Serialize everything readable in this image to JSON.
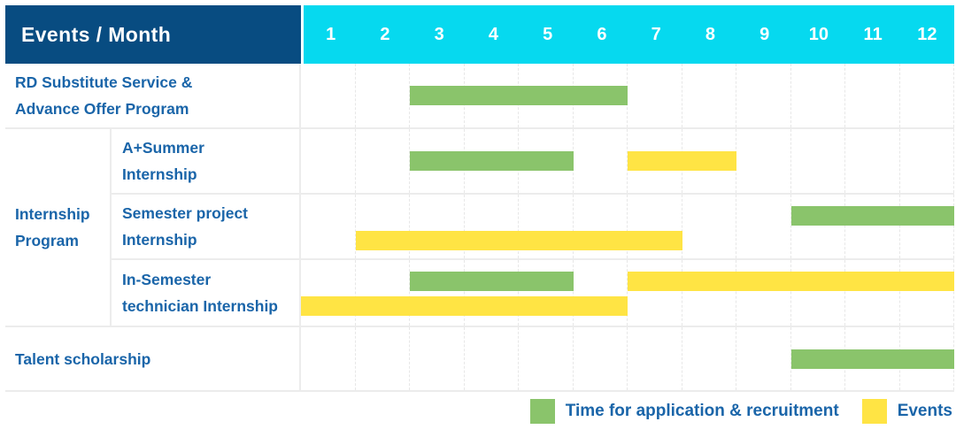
{
  "header": {
    "title": "Events / Month",
    "months": [
      "1",
      "2",
      "3",
      "4",
      "5",
      "6",
      "7",
      "8",
      "9",
      "10",
      "11",
      "12"
    ]
  },
  "group": {
    "label": "Internship Program",
    "label_lines": [
      "Internship",
      "Program"
    ]
  },
  "colors": {
    "header_bg": "#084c81",
    "months_bg": "#06d9ef",
    "header_text": "#ffffff",
    "label_text": "#1a65a9",
    "bar_green": "#8ac46b",
    "bar_yellow": "#ffe444",
    "grid": "#ececec"
  },
  "legend": {
    "items": [
      {
        "label": "Time for application & recruitment",
        "color_key": "bar_green"
      },
      {
        "label": "Events",
        "color_key": "bar_yellow"
      }
    ]
  },
  "chart_data": {
    "type": "bar",
    "subtype": "gantt",
    "title": "Events / Month",
    "xlabel": "Month",
    "x_ticks": [
      1,
      2,
      3,
      4,
      5,
      6,
      7,
      8,
      9,
      10,
      11,
      12
    ],
    "xlim": [
      1,
      12
    ],
    "grid": true,
    "legend_position": "bottom-right",
    "series_legend": [
      "Time for application & recruitment",
      "Events"
    ],
    "rows": [
      {
        "label": "RD Substitute Service & Advance Offer Program",
        "label_lines": [
          "RD Substitute Service &",
          "Advance Offer Program"
        ],
        "group": null,
        "bars": [
          {
            "series": "Time for application & recruitment",
            "color_key": "bar_green",
            "start_month": 3,
            "end_month": 6,
            "lane": "center"
          }
        ]
      },
      {
        "label": "A+Summer Internship",
        "label_lines": [
          "A+Summer",
          "Internship"
        ],
        "group": "Internship Program",
        "bars": [
          {
            "series": "Time for application & recruitment",
            "color_key": "bar_green",
            "start_month": 3,
            "end_month": 5,
            "lane": "center"
          },
          {
            "series": "Events",
            "color_key": "bar_yellow",
            "start_month": 7,
            "end_month": 8,
            "lane": "center"
          }
        ]
      },
      {
        "label": "Semester project Internship",
        "label_lines": [
          "Semester project",
          "Internship"
        ],
        "group": "Internship Program",
        "bars": [
          {
            "series": "Time for application & recruitment",
            "color_key": "bar_green",
            "start_month": 10,
            "end_month": 12,
            "lane": "top"
          },
          {
            "series": "Events",
            "color_key": "bar_yellow",
            "start_month": 2,
            "end_month": 7,
            "lane": "bottom"
          }
        ]
      },
      {
        "label": "In-Semester technician Internship",
        "label_lines": [
          "In-Semester",
          "technician Internship"
        ],
        "group": "Internship Program",
        "bars": [
          {
            "series": "Time for application & recruitment",
            "color_key": "bar_green",
            "start_month": 3,
            "end_month": 5,
            "lane": "top"
          },
          {
            "series": "Events",
            "color_key": "bar_yellow",
            "start_month": 7,
            "end_month": 12,
            "lane": "top"
          },
          {
            "series": "Events",
            "color_key": "bar_yellow",
            "start_month": 1,
            "end_month": 6,
            "lane": "bottom"
          }
        ]
      },
      {
        "label": "Talent scholarship",
        "label_lines": [
          "Talent scholarship"
        ],
        "group": null,
        "bars": [
          {
            "series": "Time for application & recruitment",
            "color_key": "bar_green",
            "start_month": 10,
            "end_month": 12,
            "lane": "center"
          }
        ]
      }
    ]
  }
}
